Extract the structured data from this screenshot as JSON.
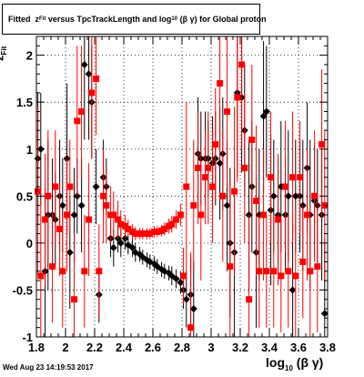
{
  "chart_data": {
    "type": "scatter",
    "title_main": "Fitted",
    "title_z": "z",
    "title_z_sub": "Fit",
    "title_middle": "versus TpcTrackLength and log",
    "title_log_sub": "10",
    "title_end": "(β γ) for Global proton",
    "ylabel_main": "z",
    "ylabel_sub": "Fit",
    "xlabel_main": "log",
    "xlabel_sub": "10",
    "xlabel_end": "(β γ)",
    "datestamp": "Wed Aug 23 14:19:53 2017",
    "xlim": [
      1.8,
      3.8
    ],
    "ylim": [
      -1.0,
      2.2
    ],
    "x_ticks": [
      "1.8",
      "2",
      "2.2",
      "2.4",
      "2.6",
      "2.8",
      "3",
      "3.2",
      "3.4",
      "3.6",
      "3.8"
    ],
    "y_ticks": [
      "-1",
      "-0.5",
      "0",
      "0.5",
      "1",
      "1.5",
      "2"
    ],
    "grid": true,
    "colors": {
      "black": "#000000",
      "red": "#ff0000"
    },
    "series": [
      {
        "color": "black",
        "points": [
          [
            1.81,
            0.9,
            0.7
          ],
          [
            1.83,
            1.0,
            0.6
          ],
          [
            1.86,
            -0.3,
            0.9
          ],
          [
            1.88,
            0.3,
            0.8
          ],
          [
            1.91,
            0.3,
            0.6
          ],
          [
            1.93,
            0.25,
            0.5
          ],
          [
            1.96,
            0.5,
            0.6
          ],
          [
            1.98,
            0.4,
            0.5
          ],
          [
            2.01,
            0.9,
            0.8
          ],
          [
            2.03,
            -0.1,
            0.6
          ],
          [
            2.06,
            0.3,
            0.5
          ],
          [
            2.08,
            0.5,
            0.4
          ],
          [
            2.11,
            0.4,
            0.5
          ],
          [
            2.13,
            1.9,
            0.8
          ],
          [
            2.16,
            1.8,
            0.7
          ],
          [
            2.18,
            1.5,
            0.6
          ],
          [
            2.21,
            0.6,
            0.4
          ],
          [
            2.23,
            -0.55,
            0.3
          ],
          [
            2.26,
            0.7,
            0.4
          ],
          [
            2.28,
            0.6,
            0.3
          ],
          [
            2.31,
            0.05,
            0.2
          ],
          [
            2.33,
            -0.05,
            0.2
          ],
          [
            2.36,
            0.05,
            0.15
          ],
          [
            2.38,
            0.0,
            0.15
          ],
          [
            2.41,
            0.05,
            0.12
          ],
          [
            2.43,
            -0.02,
            0.1
          ],
          [
            2.46,
            -0.05,
            0.1
          ],
          [
            2.48,
            -0.1,
            0.1
          ],
          [
            2.51,
            -0.12,
            0.08
          ],
          [
            2.53,
            -0.15,
            0.08
          ],
          [
            2.56,
            -0.18,
            0.08
          ],
          [
            2.58,
            -0.2,
            0.08
          ],
          [
            2.61,
            -0.22,
            0.08
          ],
          [
            2.63,
            -0.25,
            0.08
          ],
          [
            2.66,
            -0.28,
            0.08
          ],
          [
            2.68,
            -0.3,
            0.08
          ],
          [
            2.71,
            -0.32,
            0.08
          ],
          [
            2.73,
            -0.35,
            0.1
          ],
          [
            2.76,
            -0.38,
            0.1
          ],
          [
            2.79,
            -0.42,
            0.12
          ],
          [
            2.81,
            -0.5,
            0.2
          ],
          [
            2.83,
            -0.6,
            0.3
          ],
          [
            2.86,
            -0.55,
            0.4
          ],
          [
            2.88,
            -0.7,
            0.5
          ],
          [
            2.91,
            0.95,
            0.6
          ],
          [
            2.93,
            0.9,
            0.5
          ],
          [
            2.96,
            0.9,
            0.5
          ],
          [
            2.98,
            0.9,
            0.4
          ],
          [
            3.01,
            0.85,
            0.5
          ],
          [
            3.03,
            0.9,
            0.5
          ],
          [
            3.06,
            0.85,
            0.6
          ],
          [
            3.08,
            0.95,
            0.6
          ],
          [
            3.11,
            0.4,
            0.7
          ],
          [
            3.13,
            0.0,
            0.8
          ],
          [
            3.16,
            -0.1,
            0.9
          ],
          [
            3.18,
            1.6,
            0.9
          ],
          [
            3.21,
            1.55,
            0.8
          ],
          [
            3.23,
            1.2,
            0.7
          ],
          [
            3.26,
            0.3,
            0.8
          ],
          [
            3.28,
            0.6,
            0.7
          ],
          [
            3.31,
            -0.1,
            0.8
          ],
          [
            3.33,
            0.3,
            0.7
          ],
          [
            3.36,
            1.35,
            0.8
          ],
          [
            3.38,
            1.4,
            0.7
          ],
          [
            3.41,
            0.35,
            0.8
          ],
          [
            3.43,
            0.5,
            0.6
          ],
          [
            3.46,
            0.3,
            0.6
          ],
          [
            3.48,
            0.6,
            0.7
          ],
          [
            3.51,
            0.3,
            0.6
          ],
          [
            3.53,
            0.5,
            0.7
          ],
          [
            3.56,
            -0.5,
            0.7
          ],
          [
            3.58,
            0.5,
            0.6
          ],
          [
            3.61,
            0.5,
            0.6
          ],
          [
            3.63,
            0.4,
            0.7
          ],
          [
            3.66,
            0.8,
            0.7
          ],
          [
            3.68,
            0.3,
            0.8
          ],
          [
            3.71,
            0.45,
            0.6
          ],
          [
            3.73,
            0.4,
            0.6
          ],
          [
            3.76,
            0.3,
            0.7
          ],
          [
            3.78,
            -0.75,
            0.8
          ]
        ]
      },
      {
        "color": "red",
        "points": [
          [
            1.81,
            0.55,
            0.9
          ],
          [
            1.83,
            -0.35,
            0.8
          ],
          [
            1.86,
            0.25,
            0.7
          ],
          [
            1.88,
            0.5,
            0.7
          ],
          [
            1.91,
            -0.25,
            0.6
          ],
          [
            1.93,
            0.6,
            0.6
          ],
          [
            1.96,
            0.15,
            0.5
          ],
          [
            1.98,
            -0.3,
            0.6
          ],
          [
            2.01,
            0.3,
            0.6
          ],
          [
            2.03,
            0.6,
            0.5
          ],
          [
            2.06,
            -0.6,
            0.7
          ],
          [
            2.08,
            1.3,
            0.8
          ],
          [
            2.11,
            1.4,
            0.7
          ],
          [
            2.13,
            -0.3,
            0.6
          ],
          [
            2.16,
            0.25,
            0.6
          ],
          [
            2.18,
            1.6,
            0.7
          ],
          [
            2.21,
            1.75,
            0.6
          ],
          [
            2.23,
            -0.3,
            0.5
          ],
          [
            2.26,
            0.5,
            0.5
          ],
          [
            2.28,
            0.4,
            0.4
          ],
          [
            2.31,
            0.3,
            0.3
          ],
          [
            2.33,
            0.3,
            0.25
          ],
          [
            2.36,
            0.25,
            0.2
          ],
          [
            2.38,
            0.2,
            0.15
          ],
          [
            2.41,
            0.18,
            0.12
          ],
          [
            2.43,
            0.15,
            0.1
          ],
          [
            2.46,
            0.12,
            0.08
          ],
          [
            2.48,
            0.1,
            0.07
          ],
          [
            2.51,
            0.1,
            0.06
          ],
          [
            2.53,
            0.1,
            0.06
          ],
          [
            2.56,
            0.1,
            0.06
          ],
          [
            2.58,
            0.1,
            0.06
          ],
          [
            2.61,
            0.12,
            0.06
          ],
          [
            2.63,
            0.12,
            0.06
          ],
          [
            2.66,
            0.13,
            0.06
          ],
          [
            2.68,
            0.15,
            0.07
          ],
          [
            2.71,
            0.18,
            0.08
          ],
          [
            2.73,
            0.2,
            0.09
          ],
          [
            2.76,
            0.25,
            0.1
          ],
          [
            2.79,
            0.3,
            0.12
          ],
          [
            2.81,
            -0.35,
            0.3
          ],
          [
            2.83,
            0.6,
            0.9
          ],
          [
            2.86,
            -0.9,
            0.8
          ],
          [
            2.88,
            0.4,
            0.7
          ],
          [
            2.91,
            0.8,
            0.6
          ],
          [
            2.93,
            0.3,
            0.7
          ],
          [
            2.96,
            0.7,
            0.5
          ],
          [
            2.98,
            0.8,
            0.6
          ],
          [
            3.01,
            0.6,
            0.6
          ],
          [
            3.03,
            1.05,
            0.6
          ],
          [
            3.06,
            1.7,
            0.8
          ],
          [
            3.08,
            0.5,
            0.7
          ],
          [
            3.11,
            1.4,
            0.8
          ],
          [
            3.13,
            -0.25,
            0.9
          ],
          [
            3.16,
            0.55,
            0.9
          ],
          [
            3.18,
            1.55,
            0.9
          ],
          [
            3.21,
            1.9,
            0.9
          ],
          [
            3.23,
            0.8,
            0.8
          ],
          [
            3.26,
            -0.6,
            0.9
          ],
          [
            3.28,
            1.1,
            0.8
          ],
          [
            3.31,
            0.45,
            0.8
          ],
          [
            3.33,
            -0.3,
            0.6
          ],
          [
            3.36,
            0.3,
            0.7
          ],
          [
            3.38,
            -0.3,
            0.6
          ],
          [
            3.41,
            0.7,
            0.7
          ],
          [
            3.43,
            -0.3,
            0.6
          ],
          [
            3.46,
            0.25,
            0.7
          ],
          [
            3.48,
            -0.35,
            0.6
          ],
          [
            3.51,
            0.6,
            0.7
          ],
          [
            3.53,
            -0.3,
            0.6
          ],
          [
            3.56,
            0.7,
            0.7
          ],
          [
            3.58,
            -0.35,
            0.7
          ],
          [
            3.61,
            0.7,
            0.6
          ],
          [
            3.63,
            -0.2,
            0.6
          ],
          [
            3.66,
            0.3,
            0.7
          ],
          [
            3.68,
            -0.3,
            0.7
          ],
          [
            3.71,
            0.5,
            0.7
          ],
          [
            3.73,
            -0.25,
            0.7
          ],
          [
            3.76,
            1.05,
            0.8
          ],
          [
            3.78,
            0.4,
            0.8
          ]
        ]
      }
    ]
  }
}
